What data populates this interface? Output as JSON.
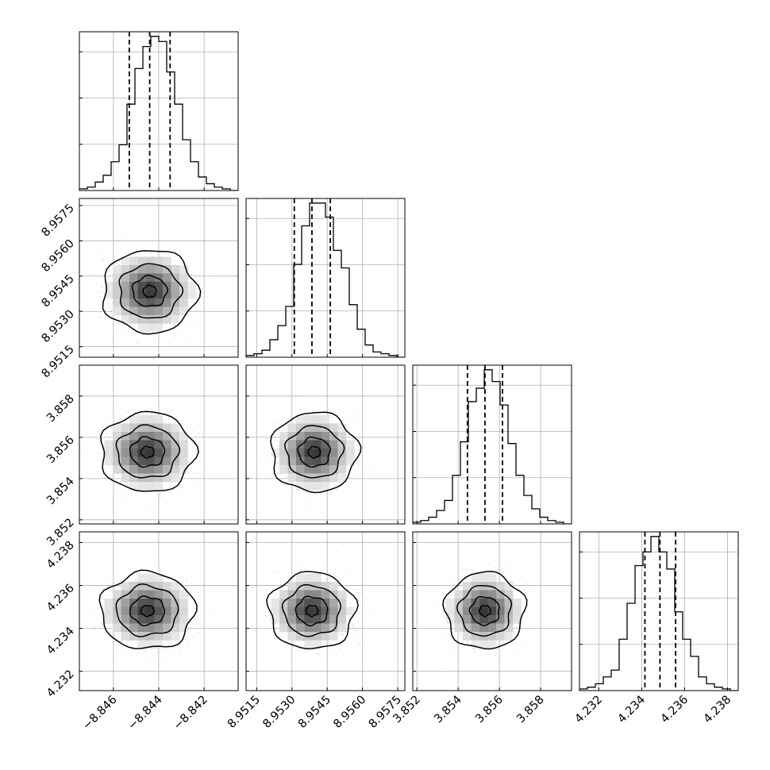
{
  "chart_data": {
    "type": "corner",
    "title": "",
    "parameter_count": 4,
    "grid": true,
    "quantile_lines": "dashed",
    "colors": {
      "line": "#000000",
      "grid": "#b0b0b0",
      "background": "#ffffff",
      "scatter": "#7f7f7f"
    },
    "parameters": [
      {
        "label": "",
        "range": [
          -8.8475,
          -8.8405
        ],
        "ticks": [
          "−8.846",
          "−8.844",
          "−8.842"
        ],
        "tick_values": [
          -8.846,
          -8.844,
          -8.842
        ],
        "quantiles": [
          -8.8453,
          -8.8444,
          -8.8435
        ],
        "histogram": [
          1,
          2,
          5,
          9,
          17,
          27,
          51,
          72,
          85,
          91,
          88,
          70,
          51,
          30,
          17,
          8,
          4,
          2,
          1,
          0
        ]
      },
      {
        "label": "",
        "range": [
          8.95105,
          8.9578
        ],
        "ticks": [
          "8.9515",
          "8.9530",
          "8.9545",
          "8.9560",
          "8.9575"
        ],
        "tick_values": [
          8.9515,
          8.953,
          8.9545,
          8.956,
          8.9575
        ],
        "quantiles": [
          8.9531,
          8.95385,
          8.95463
        ],
        "histogram": [
          1,
          2,
          4,
          10,
          18,
          29,
          53,
          75,
          88,
          88,
          80,
          61,
          51,
          30,
          16,
          7,
          3,
          2,
          1,
          0
        ]
      },
      {
        "label": "",
        "range": [
          3.8518,
          3.8595
        ],
        "ticks": [
          "3.852",
          "3.854",
          "3.856",
          "3.858"
        ],
        "tick_values": [
          3.852,
          3.854,
          3.856,
          3.858
        ],
        "quantiles": [
          3.85445,
          3.8553,
          3.85615
        ],
        "histogram": [
          1,
          2,
          4,
          8,
          14,
          29,
          49,
          73,
          81,
          92,
          85,
          71,
          48,
          29,
          17,
          9,
          4,
          2,
          1,
          0
        ]
      },
      {
        "label": "",
        "range": [
          4.2311,
          4.2385
        ],
        "ticks": [
          "4.232",
          "4.234",
          "4.236",
          "4.238"
        ],
        "tick_values": [
          4.232,
          4.234,
          4.236,
          4.238
        ],
        "quantiles": [
          4.23415,
          4.23485,
          4.23558
        ],
        "histogram": [
          1,
          2,
          4,
          8,
          12,
          30,
          51,
          73,
          81,
          90,
          81,
          71,
          46,
          30,
          20,
          8,
          4,
          2,
          1,
          0
        ]
      }
    ],
    "joint_contours": {
      "1_0": {
        "center": [
          -8.8444,
          8.95385
        ],
        "sigma": [
          0.00088,
          0.00075
        ]
      },
      "2_0": {
        "center": [
          -8.8445,
          3.85528
        ],
        "sigma": [
          0.00088,
          0.00082
        ]
      },
      "2_1": {
        "center": [
          8.95395,
          3.85528
        ],
        "sigma": [
          0.00078,
          0.00082
        ]
      },
      "3_0": {
        "center": [
          -8.8445,
          4.23482
        ],
        "sigma": [
          0.00088,
          0.00076
        ]
      },
      "3_1": {
        "center": [
          8.95385,
          4.23482
        ],
        "sigma": [
          0.00078,
          0.00076
        ]
      },
      "3_2": {
        "center": [
          3.8553,
          4.23482
        ],
        "sigma": [
          0.00082,
          0.00076
        ]
      }
    }
  }
}
